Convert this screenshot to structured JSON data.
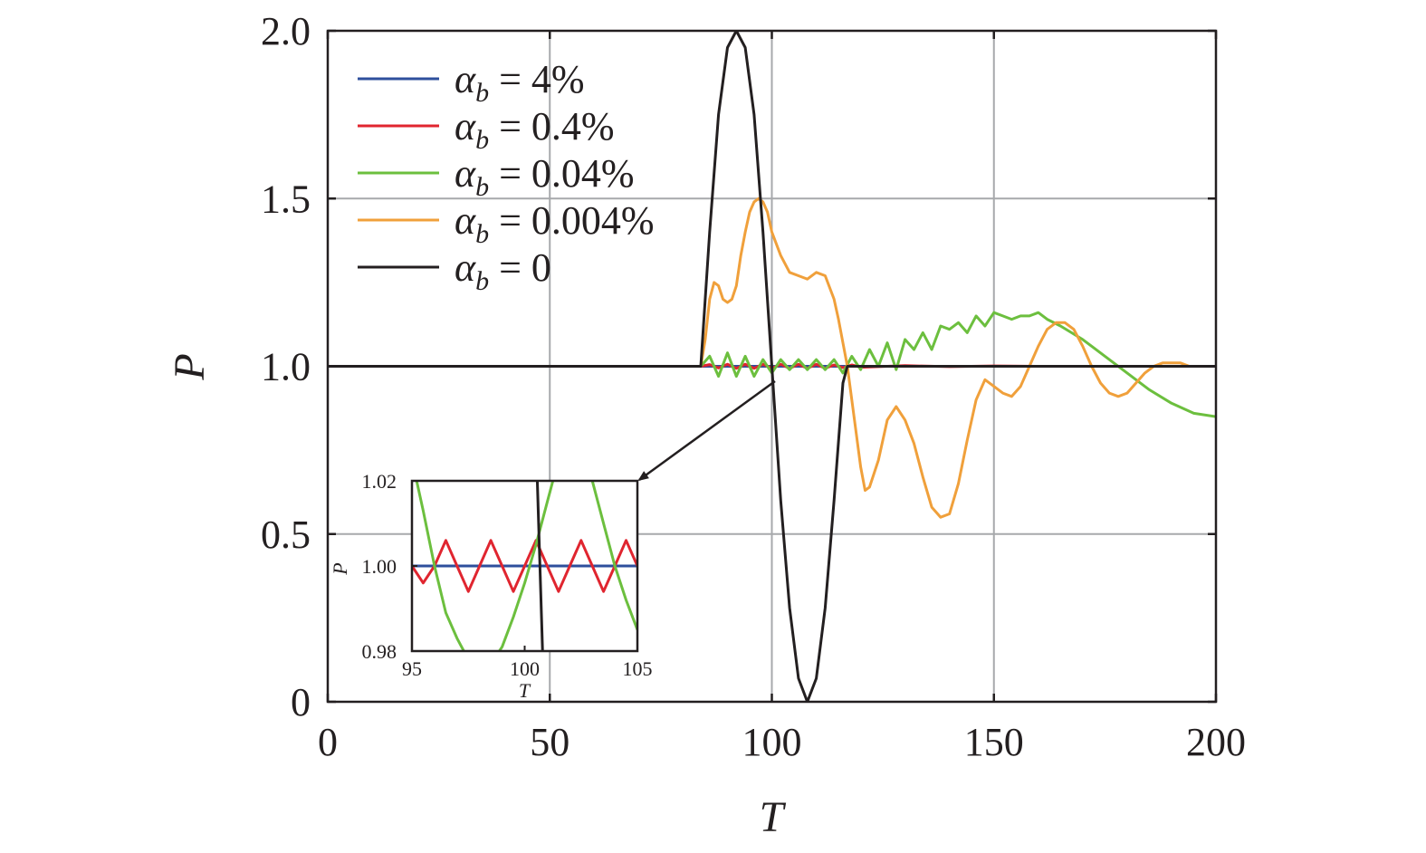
{
  "chart_data": [
    {
      "type": "line",
      "xlabel": "T",
      "ylabel": "P",
      "xlim": [
        0,
        200
      ],
      "ylim": [
        0,
        2.0
      ],
      "xticks": [
        0,
        50,
        100,
        150,
        200
      ],
      "xtick_labels": [
        "0",
        "50",
        "100",
        "150",
        "200"
      ],
      "yticks": [
        0,
        0.5,
        1.0,
        1.5,
        2.0
      ],
      "ytick_labels": [
        "0",
        "0.5",
        "1.0",
        "1.5",
        "2.0"
      ],
      "grid": true,
      "legend_position": "top-left",
      "series": [
        {
          "name": "α_b = 4%",
          "legend_prefix": "α",
          "legend_sub": "b",
          "legend_value": " = 4%",
          "color": "#2e4f9c",
          "x": [
            0,
            200
          ],
          "y": [
            1.0,
            1.0
          ]
        },
        {
          "name": "α_b = 0.4%",
          "legend_prefix": "α",
          "legend_sub": "b",
          "legend_value": " = 0.4%",
          "color": "#e0252f",
          "x": [
            0,
            84,
            86,
            88,
            90,
            92,
            94,
            96,
            98,
            100,
            102,
            104,
            106,
            108,
            110,
            112,
            114,
            116,
            118,
            120,
            130,
            140,
            150,
            160,
            200
          ],
          "y": [
            1.0,
            1.0,
            1.005,
            0.995,
            1.006,
            0.994,
            1.006,
            0.994,
            1.006,
            0.994,
            1.006,
            0.994,
            1.006,
            0.994,
            1.006,
            0.994,
            1.004,
            0.996,
            1.004,
            0.997,
            1.002,
            0.999,
            1.001,
            1.0,
            1.0
          ]
        },
        {
          "name": "α_b = 0.04%",
          "legend_prefix": "α",
          "legend_sub": "b",
          "legend_value": " = 0.04%",
          "color": "#6cbf3e",
          "x": [
            0,
            84,
            86,
            88,
            90,
            92,
            94,
            96,
            98,
            100,
            102,
            104,
            106,
            108,
            110,
            112,
            114,
            116,
            118,
            120,
            122,
            124,
            126,
            128,
            130,
            132,
            134,
            136,
            138,
            140,
            142,
            144,
            146,
            148,
            150,
            152,
            154,
            156,
            158,
            160,
            162,
            165,
            170,
            175,
            180,
            185,
            190,
            195,
            200
          ],
          "y": [
            1.0,
            1.0,
            1.03,
            0.97,
            1.04,
            0.97,
            1.03,
            0.97,
            1.02,
            0.98,
            1.02,
            0.99,
            1.02,
            0.99,
            1.02,
            0.99,
            1.02,
            0.98,
            1.03,
            0.99,
            1.05,
            1.0,
            1.07,
            0.99,
            1.08,
            1.05,
            1.1,
            1.05,
            1.12,
            1.11,
            1.13,
            1.1,
            1.15,
            1.12,
            1.16,
            1.15,
            1.14,
            1.15,
            1.15,
            1.16,
            1.14,
            1.12,
            1.08,
            1.03,
            0.98,
            0.93,
            0.89,
            0.86,
            0.85
          ]
        },
        {
          "name": "α_b = 0.004%",
          "legend_prefix": "α",
          "legend_sub": "b",
          "legend_value": " = 0.004%",
          "color": "#f0a03b",
          "x": [
            0,
            84,
            85,
            86,
            87,
            88,
            89,
            90,
            91,
            92,
            93,
            94,
            95,
            96,
            97,
            98,
            99,
            100,
            102,
            104,
            106,
            108,
            110,
            112,
            114,
            115,
            116,
            117,
            118,
            119,
            120,
            121,
            122,
            124,
            126,
            128,
            130,
            132,
            134,
            136,
            138,
            140,
            142,
            144,
            146,
            148,
            150,
            152,
            154,
            156,
            158,
            160,
            162,
            164,
            166,
            168,
            170,
            172,
            174,
            176,
            178,
            180,
            182,
            184,
            186,
            188,
            190,
            192,
            194,
            196,
            198,
            200
          ],
          "y": [
            1.0,
            1.0,
            1.08,
            1.2,
            1.25,
            1.24,
            1.2,
            1.19,
            1.2,
            1.24,
            1.33,
            1.4,
            1.46,
            1.49,
            1.5,
            1.49,
            1.46,
            1.4,
            1.33,
            1.28,
            1.27,
            1.26,
            1.28,
            1.27,
            1.2,
            1.14,
            1.07,
            1.0,
            0.9,
            0.8,
            0.7,
            0.63,
            0.64,
            0.72,
            0.84,
            0.88,
            0.84,
            0.77,
            0.67,
            0.58,
            0.55,
            0.56,
            0.65,
            0.78,
            0.9,
            0.96,
            0.94,
            0.92,
            0.91,
            0.94,
            1.0,
            1.06,
            1.11,
            1.13,
            1.13,
            1.11,
            1.06,
            1.0,
            0.95,
            0.92,
            0.91,
            0.92,
            0.95,
            0.98,
            1.0,
            1.01,
            1.01,
            1.01,
            1.0,
            1.0,
            1.0,
            1.0
          ]
        },
        {
          "name": "α_b = 0",
          "legend_prefix": "α",
          "legend_sub": "b",
          "legend_value": " = 0",
          "color": "#231f20",
          "x": [
            0,
            84,
            86,
            88,
            90,
            92,
            94,
            96,
            98,
            100,
            102,
            104,
            106,
            108,
            110,
            112,
            114,
            116,
            117,
            118,
            120,
            200
          ],
          "y": [
            1.0,
            1.0,
            1.4,
            1.75,
            1.95,
            2.0,
            1.95,
            1.75,
            1.4,
            1.0,
            0.6,
            0.28,
            0.07,
            0.0,
            0.07,
            0.28,
            0.6,
            0.95,
            1.0,
            1.0,
            1.0,
            1.0
          ]
        }
      ]
    },
    {
      "type": "line",
      "role": "inset",
      "xlabel": "T",
      "ylabel": "P",
      "xlim": [
        95,
        105
      ],
      "ylim": [
        0.98,
        1.02
      ],
      "xticks": [
        95,
        100,
        105
      ],
      "xtick_labels": [
        "95",
        "100",
        "105"
      ],
      "yticks": [
        0.98,
        1.0,
        1.02
      ],
      "ytick_labels": [
        "0.98",
        "1.00",
        "1.02"
      ],
      "grid": false,
      "series": [
        {
          "name": "α_b = 4%",
          "color": "#2e4f9c",
          "x": [
            95,
            105
          ],
          "y": [
            1.0,
            1.0
          ]
        },
        {
          "name": "α_b = 0.4%",
          "color": "#e0252f",
          "x": [
            95,
            95.5,
            96,
            96.5,
            97,
            97.5,
            98,
            98.5,
            99,
            99.5,
            100,
            100.5,
            101,
            101.5,
            102,
            102.5,
            103,
            103.5,
            104,
            104.5,
            105
          ],
          "y": [
            1.0,
            0.996,
            1.0,
            1.006,
            1.0,
            0.994,
            1.0,
            1.006,
            1.0,
            0.994,
            1.0,
            1.006,
            1.0,
            0.994,
            1.0,
            1.006,
            1.0,
            0.994,
            1.0,
            1.006,
            1.0
          ]
        },
        {
          "name": "α_b = 0.04%",
          "color": "#6cbf3e",
          "x": [
            95,
            95.5,
            96,
            96.5,
            97,
            97.5,
            98,
            98.5,
            99,
            99.5,
            100,
            100.5,
            101,
            101.5,
            102,
            102.5,
            103,
            103.5,
            104,
            104.5,
            105
          ],
          "y": [
            1.025,
            1.013,
            1.0,
            0.989,
            0.983,
            0.978,
            0.975,
            0.977,
            0.981,
            0.988,
            0.996,
            1.005,
            1.015,
            1.025,
            1.03,
            1.028,
            1.02,
            1.01,
            1.0,
            0.992,
            0.985
          ]
        },
        {
          "name": "α_b = 0",
          "color": "#231f20",
          "x": [
            100.5,
            100.85
          ],
          "y": [
            1.03,
            0.97
          ]
        }
      ]
    }
  ]
}
